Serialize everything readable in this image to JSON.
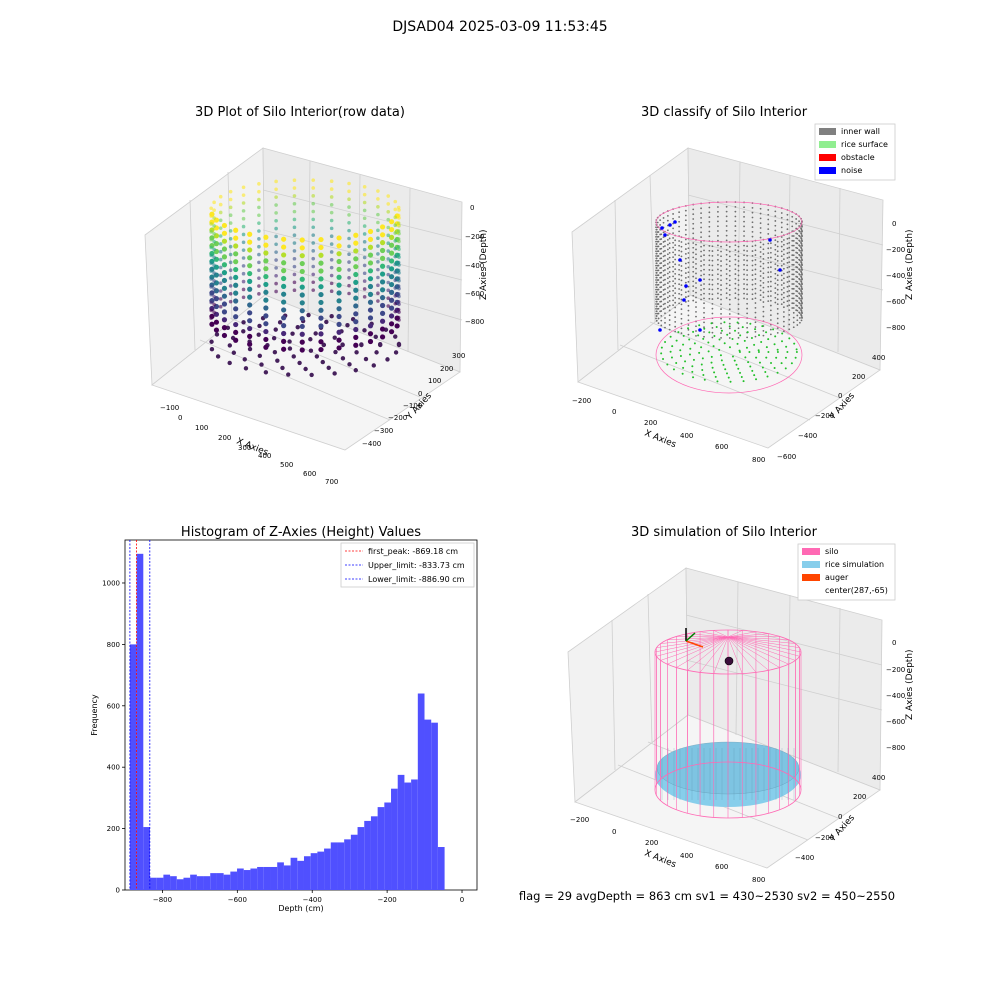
{
  "figure_title": "DJSAD04 2025-03-09 11:53:45",
  "footer": "flag = 29  avgDepth = 863 cm  sv1 = 430~2530  sv2 = 450~2550",
  "panels": {
    "raw": {
      "title": "3D Plot of Silo Interior(row data)",
      "xlabel": "X Axies",
      "ylabel": "Y Axies",
      "zlabel": "Z Axies (Depth)",
      "xticks": [
        "−100",
        "0",
        "100",
        "200",
        "300",
        "400",
        "500",
        "600",
        "700"
      ],
      "yticks": [
        "300",
        "200",
        "100",
        "0",
        "−100",
        "−200",
        "−300",
        "−400"
      ],
      "zticks": [
        "0",
        "−200",
        "−400",
        "−600",
        "−800"
      ],
      "colormap": "viridis"
    },
    "classify": {
      "title": "3D classify of Silo Interior",
      "xlabel": "X Axies",
      "ylabel": "Y Axies",
      "zlabel": "Z Axies (Depth)",
      "xticks": [
        "−200",
        "0",
        "200",
        "400",
        "600",
        "800"
      ],
      "yticks": [
        "400",
        "200",
        "0",
        "−200",
        "−400",
        "−600"
      ],
      "zticks": [
        "0",
        "−200",
        "−400",
        "−600",
        "−800"
      ],
      "legend": [
        {
          "label": "inner wall",
          "color": "#808080"
        },
        {
          "label": "rice surface",
          "color": "#90ee90"
        },
        {
          "label": "obstacle",
          "color": "#ff0000"
        },
        {
          "label": "noise",
          "color": "#0000ff"
        }
      ]
    },
    "simulation": {
      "title": "3D simulation of Silo Interior",
      "xlabel": "X Axies",
      "ylabel": "Y Axies",
      "zlabel": "Z Axies (Depth)",
      "xticks": [
        "−200",
        "0",
        "200",
        "400",
        "600",
        "800"
      ],
      "yticks": [
        "400",
        "200",
        "0",
        "−200",
        "−400"
      ],
      "zticks": [
        "0",
        "−200",
        "−400",
        "−600",
        "−800"
      ],
      "legend": [
        {
          "label": "silo",
          "color": "#ff69b4"
        },
        {
          "label": "rice simulation",
          "color": "#87ceeb"
        },
        {
          "label": "auger",
          "color": "#ff4500"
        },
        {
          "label": "center(287,-65)",
          "color": ""
        }
      ]
    }
  },
  "chart_data": {
    "type": "bar",
    "title": "Histogram of Z-Axies (Height) Values",
    "xlabel": "Depth (cm)",
    "ylabel": "Frequency",
    "xlim": [
      -900,
      40
    ],
    "ylim": [
      0,
      1140
    ],
    "xticks": [
      -800,
      -600,
      -400,
      -200,
      0
    ],
    "yticks": [
      0,
      200,
      400,
      600,
      800,
      1000
    ],
    "bar_color": "#5050ff",
    "bins": {
      "start": -886.9,
      "width": 17.88,
      "values": [
        800,
        1095,
        205,
        40,
        40,
        50,
        45,
        35,
        40,
        50,
        45,
        45,
        55,
        55,
        50,
        60,
        70,
        65,
        70,
        75,
        75,
        75,
        90,
        80,
        105,
        95,
        110,
        120,
        125,
        135,
        155,
        155,
        165,
        180,
        205,
        225,
        240,
        270,
        285,
        330,
        375,
        350,
        360,
        640,
        555,
        545,
        140
      ]
    },
    "reference_lines": [
      {
        "label": "first_peak: -869.18 cm",
        "value": -869.18,
        "color": "#ff0000"
      },
      {
        "label": "Upper_limit: -833.73 cm",
        "value": -833.73,
        "color": "#0000ff"
      },
      {
        "label": "Lower_limit: -886.90 cm",
        "value": -886.9,
        "color": "#0000ff"
      }
    ],
    "legend_position": "top-right"
  }
}
